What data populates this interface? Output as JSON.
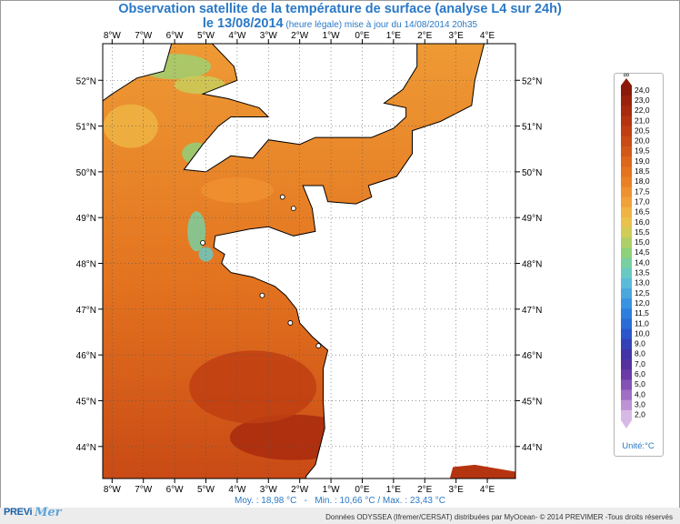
{
  "header": {
    "title_line1": "Observation satellite de la température de surface (analyse L4 sur 24h)",
    "title_date": "le 13/08/2014",
    "title_update": " (heure légale) mise à jour du 14/08/2014 20h35"
  },
  "map": {
    "lon_labels": [
      "8°W",
      "7°W",
      "6°W",
      "5°W",
      "4°W",
      "3°W",
      "2°W",
      "1°W",
      "0°E",
      "1°E",
      "2°E",
      "3°E",
      "4°E"
    ],
    "lat_labels": [
      "52°N",
      "51°N",
      "50°N",
      "49°N",
      "48°N",
      "47°N",
      "46°N",
      "45°N",
      "44°N"
    ],
    "lon_range": [
      -8.3,
      4.9
    ],
    "lat_range": [
      43.3,
      52.8
    ],
    "sea_color": "#e8862f",
    "land_color": "#ffffff",
    "coast_color": "#000000"
  },
  "colorbar": {
    "labels": [
      "24,0",
      "23,0",
      "22,0",
      "21,0",
      "20,5",
      "20,0",
      "19,5",
      "19,0",
      "18,5",
      "18,0",
      "17,5",
      "17,0",
      "16,5",
      "16,0",
      "15,5",
      "15,0",
      "14,5",
      "14,0",
      "13,5",
      "13,0",
      "12,5",
      "12,0",
      "11,5",
      "11,0",
      "10,0",
      "9,0",
      "8,0",
      "7,0",
      "6,0",
      "5,0",
      "4,0",
      "3,0",
      "2,0"
    ],
    "colors": [
      "#8b1a0a",
      "#9a220c",
      "#a82a0e",
      "#b53410",
      "#c03e12",
      "#c94a15",
      "#d25818",
      "#db661c",
      "#e3731f",
      "#ea8026",
      "#ee9130",
      "#f0a23a",
      "#efb443",
      "#e8c24c",
      "#cfcc58",
      "#aecf68",
      "#8fd07a",
      "#79cfa0",
      "#69c9c2",
      "#5abbd8",
      "#4aa7de",
      "#3a93e0",
      "#2e7fdd",
      "#2a6bd6",
      "#2b55ca",
      "#3442b7",
      "#4234a8",
      "#55319e",
      "#6a3aa6",
      "#8452b6",
      "#a16ec6",
      "#bd92d6",
      "#d8b9e6"
    ],
    "unit_label": "Unité:°C"
  },
  "stats": {
    "moy": "Moy. : 18,98 °C",
    "minmax": "Min. : 10,66 °C / Max. : 23,43 °C"
  },
  "footer": {
    "logo_prev": "PREVi",
    "logo_mer": "Mer",
    "credit": "Données ODYSSEA (Ifremer/CERSAT) distribuées par MyOcean- © 2014 PREVIMER -Tous droits réservés"
  }
}
